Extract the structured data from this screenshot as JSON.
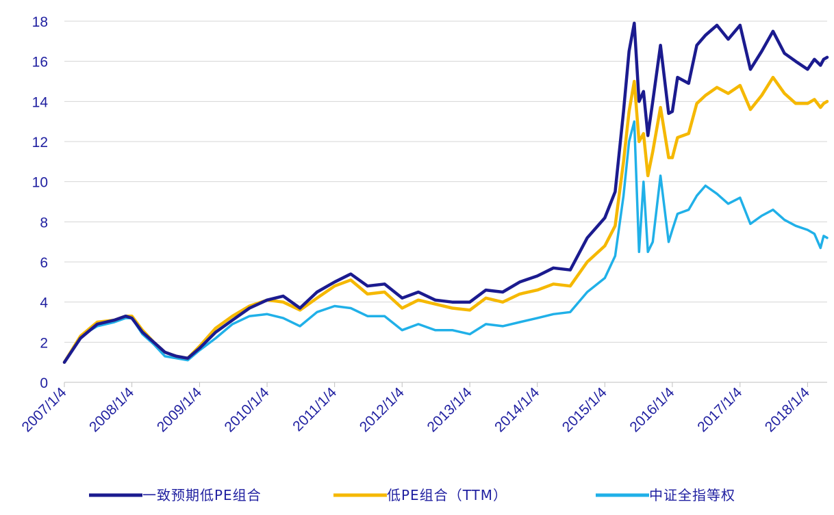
{
  "chart_data": {
    "type": "line",
    "title": "",
    "xlabel": "",
    "ylabel": "",
    "ylim": [
      0,
      18
    ],
    "yticks": [
      0,
      2,
      4,
      6,
      8,
      10,
      12,
      14,
      16,
      18
    ],
    "grid": "horizontal",
    "legend_position": "bottom",
    "x_tick_labels": [
      "2007/1/4",
      "2008/1/4",
      "2009/1/4",
      "2010/1/4",
      "2011/1/4",
      "2012/1/4",
      "2013/1/4",
      "2014/1/4",
      "2015/1/4",
      "2016/1/4",
      "2017/1/4",
      "2018/1/4"
    ],
    "x": [
      "2007/1/4",
      "2007/4/1",
      "2007/7/1",
      "2007/10/1",
      "2007/12/1",
      "2008/1/4",
      "2008/3/1",
      "2008/5/1",
      "2008/7/1",
      "2008/9/1",
      "2008/11/1",
      "2009/1/4",
      "2009/4/1",
      "2009/7/1",
      "2009/10/1",
      "2010/1/4",
      "2010/4/1",
      "2010/7/1",
      "2010/10/1",
      "2011/1/4",
      "2011/4/1",
      "2011/7/1",
      "2011/10/1",
      "2012/1/4",
      "2012/4/1",
      "2012/7/1",
      "2012/10/1",
      "2013/1/4",
      "2013/4/1",
      "2013/7/1",
      "2013/10/1",
      "2014/1/4",
      "2014/4/1",
      "2014/7/1",
      "2014/10/1",
      "2015/1/4",
      "2015/3/1",
      "2015/4/15",
      "2015/5/15",
      "2015/6/12",
      "2015/7/8",
      "2015/8/1",
      "2015/8/25",
      "2015/9/20",
      "2015/11/1",
      "2015/12/15",
      "2016/1/4",
      "2016/2/1",
      "2016/4/1",
      "2016/5/15",
      "2016/7/1",
      "2016/9/1",
      "2016/11/1",
      "2017/1/4",
      "2017/3/1",
      "2017/5/1",
      "2017/7/1",
      "2017/9/1",
      "2017/11/1",
      "2018/1/4",
      "2018/2/10",
      "2018/3/15",
      "2018/4/1",
      "2018/4/20"
    ],
    "series": [
      {
        "name": "一致预期低PE组合",
        "color": "#1b1b8f",
        "values": [
          1.0,
          2.2,
          2.9,
          3.1,
          3.3,
          3.2,
          2.5,
          2.0,
          1.5,
          1.3,
          1.2,
          1.7,
          2.5,
          3.1,
          3.7,
          4.1,
          4.3,
          3.7,
          4.5,
          5.0,
          5.4,
          4.8,
          4.9,
          4.2,
          4.5,
          4.1,
          4.0,
          4.0,
          4.6,
          4.5,
          5.0,
          5.3,
          5.7,
          5.6,
          7.2,
          8.2,
          9.5,
          13.5,
          16.5,
          17.9,
          14.0,
          14.5,
          12.3,
          14.0,
          16.8,
          13.4,
          13.5,
          15.2,
          14.9,
          16.8,
          17.3,
          17.8,
          17.1,
          17.8,
          15.6,
          16.5,
          17.5,
          16.4,
          16.0,
          15.6,
          16.1,
          15.8,
          16.1,
          16.2
        ]
      },
      {
        "name": "低PE组合（TTM）",
        "color": "#f5b800",
        "values": [
          1.0,
          2.3,
          3.0,
          3.1,
          3.3,
          3.3,
          2.6,
          2.0,
          1.5,
          1.3,
          1.2,
          1.8,
          2.7,
          3.3,
          3.8,
          4.1,
          4.0,
          3.6,
          4.2,
          4.8,
          5.1,
          4.4,
          4.5,
          3.7,
          4.1,
          3.9,
          3.7,
          3.6,
          4.2,
          4.0,
          4.4,
          4.6,
          4.9,
          4.8,
          6.0,
          6.8,
          7.8,
          11.0,
          13.5,
          15.0,
          12.0,
          12.4,
          10.3,
          11.5,
          13.7,
          11.2,
          11.2,
          12.2,
          12.4,
          13.9,
          14.3,
          14.7,
          14.4,
          14.8,
          13.6,
          14.3,
          15.2,
          14.4,
          13.9,
          13.9,
          14.1,
          13.7,
          13.9,
          14.0
        ]
      },
      {
        "name": "中证全指等权",
        "color": "#20b0e8",
        "values": [
          1.0,
          2.3,
          2.8,
          3.0,
          3.2,
          3.2,
          2.4,
          1.9,
          1.3,
          1.2,
          1.1,
          1.6,
          2.2,
          2.9,
          3.3,
          3.4,
          3.2,
          2.8,
          3.5,
          3.8,
          3.7,
          3.3,
          3.3,
          2.6,
          2.9,
          2.6,
          2.6,
          2.4,
          2.9,
          2.8,
          3.0,
          3.2,
          3.4,
          3.5,
          4.5,
          5.2,
          6.3,
          9.3,
          12.0,
          13.0,
          6.5,
          10.0,
          6.5,
          7.0,
          10.3,
          7.0,
          7.6,
          8.4,
          8.6,
          9.3,
          9.8,
          9.4,
          8.9,
          9.2,
          7.9,
          8.3,
          8.6,
          8.1,
          7.8,
          7.6,
          7.4,
          6.7,
          7.3,
          7.2
        ]
      }
    ]
  }
}
